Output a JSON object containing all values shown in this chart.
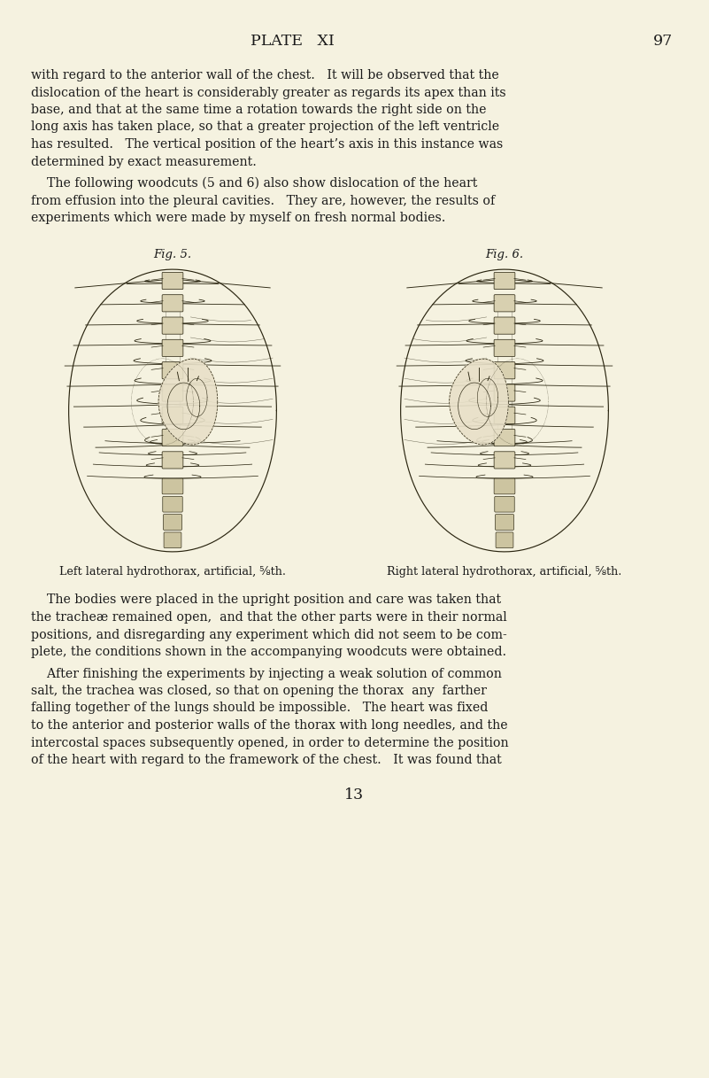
{
  "bg_color": "#f5f2e0",
  "page_title": "PLATE   XI",
  "page_number_top": "97",
  "page_number_bottom": "13",
  "title_fontsize": 12.5,
  "body_fontsize": 10.2,
  "caption_fontsize": 9.2,
  "fig_label_fontsize": 9.5,
  "text_color": "#1a1a1a",
  "para1_lines": [
    "with regard to the anterior wall of the chest.   It will be observed that the",
    "dislocation of the heart is considerably greater as regards its apex than its",
    "base, and that at the same time a rotation towards the right side on the",
    "long axis has taken place, so that a greater projection of the left ventricle",
    "has resulted.   The vertical position of the heart’s axis in this instance was",
    "determined by exact measurement."
  ],
  "para2_lines": [
    "    The following woodcuts (5 and 6) also show dislocation of the heart",
    "from effusion into the pleural cavities.   They are, however, the results of",
    "experiments which were made by myself on fresh normal bodies."
  ],
  "fig5_label": "Fig. 5.",
  "fig6_label": "Fig. 6.",
  "fig5_caption": "Left lateral hydrothorax, artificial, ⅝th.",
  "fig6_caption": "Right lateral hydrothorax, artificial, ⅝th.",
  "para3_lines": [
    "    The bodies were placed in the upright position and care was taken that",
    "the tracheæ remained open,  and that the other parts were in their normal",
    "positions, and disregarding any experiment which did not seem to be com-",
    "plete, the conditions shown in the accompanying woodcuts were obtained."
  ],
  "para4_lines": [
    "    After finishing the experiments by injecting a weak solution of common",
    "salt, the trachea was closed, so that on opening the thorax  any  farther",
    "falling together of the lungs should be impossible.   The heart was fixed",
    "to the anterior and posterior walls of the thorax with long needles, and the",
    "intercostal spaces subsequently opened, in order to determine the position",
    "of the heart with regard to the framework of the chest.   It was found that"
  ]
}
